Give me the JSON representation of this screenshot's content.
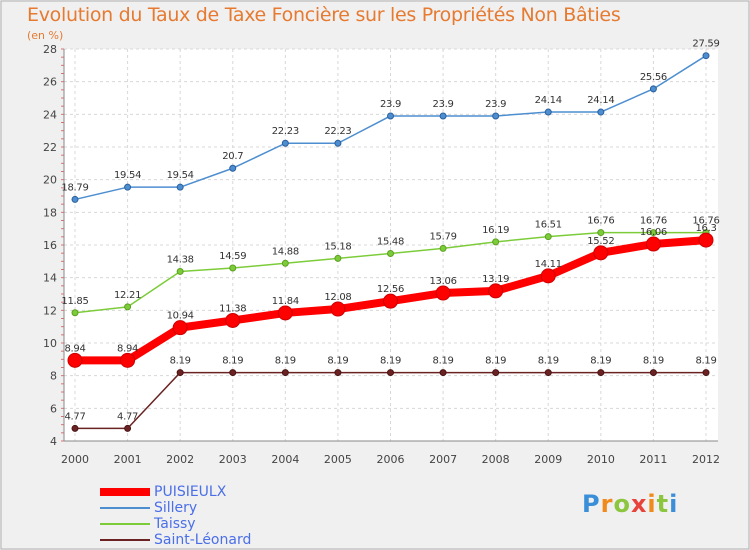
{
  "title": "Evolution du Taux de Taxe Foncière sur les Propriétés Non Bâties",
  "unit_label": "(en %)",
  "logo_text": "Proxiti",
  "chart_data": {
    "type": "line",
    "x": [
      "2000",
      "2001",
      "2002",
      "2003",
      "2004",
      "2005",
      "2006",
      "2007",
      "2008",
      "2009",
      "2010",
      "2011",
      "2012"
    ],
    "ylim": [
      4,
      28
    ],
    "yticks": [
      4,
      6,
      8,
      10,
      12,
      14,
      16,
      18,
      20,
      22,
      24,
      26,
      28
    ],
    "grid": true,
    "legend_position": "bottom-left",
    "series": [
      {
        "name": "PUISIEULX",
        "color": "#ff0000",
        "values": [
          8.94,
          8.94,
          10.94,
          11.38,
          11.84,
          12.08,
          12.56,
          13.06,
          13.19,
          14.11,
          15.52,
          16.06,
          16.3
        ],
        "labels": [
          "8.94",
          "8.94",
          "10.94",
          "11.38",
          "11.84",
          "12.08",
          "12.56",
          "13.06",
          "13.19",
          "14.11",
          "15.52",
          "16.06",
          "16.3"
        ]
      },
      {
        "name": "Sillery",
        "color": "#4d8ed0",
        "values": [
          18.79,
          19.54,
          19.54,
          20.7,
          22.23,
          22.23,
          23.9,
          23.9,
          23.9,
          24.14,
          24.14,
          25.56,
          27.59
        ],
        "labels": [
          "18.79",
          "19.54",
          "19.54",
          "20.7",
          "22.23",
          "22.23",
          "23.9",
          "23.9",
          "23.9",
          "24.14",
          "24.14",
          "25.56",
          "27.59"
        ]
      },
      {
        "name": "Taissy",
        "color": "#7ccc3a",
        "values": [
          11.85,
          12.21,
          14.38,
          14.59,
          14.88,
          15.18,
          15.48,
          15.79,
          16.19,
          16.51,
          16.76,
          16.76,
          16.76
        ],
        "labels": [
          "11.85",
          "12.21",
          "14.38",
          "14.59",
          "14.88",
          "15.18",
          "15.48",
          "15.79",
          "16.19",
          "16.51",
          "16.76",
          "16.76",
          "16.76"
        ]
      },
      {
        "name": "Saint-Léonard",
        "color": "#6b2222",
        "values": [
          4.77,
          4.77,
          8.19,
          8.19,
          8.19,
          8.19,
          8.19,
          8.19,
          8.19,
          8.19,
          8.19,
          8.19,
          8.19
        ],
        "labels": [
          "4.77",
          "4.77",
          "8.19",
          "8.19",
          "8.19",
          "8.19",
          "8.19",
          "8.19",
          "8.19",
          "8.19",
          "8.19",
          "8.19",
          "8.19"
        ]
      }
    ]
  },
  "legend": [
    {
      "label": "PUISIEULX",
      "color": "#ff0000"
    },
    {
      "label": "Sillery",
      "color": "#4d8ed0"
    },
    {
      "label": "Taissy",
      "color": "#7ccc3a"
    },
    {
      "label": "Saint-Léonard",
      "color": "#6b2222"
    }
  ]
}
